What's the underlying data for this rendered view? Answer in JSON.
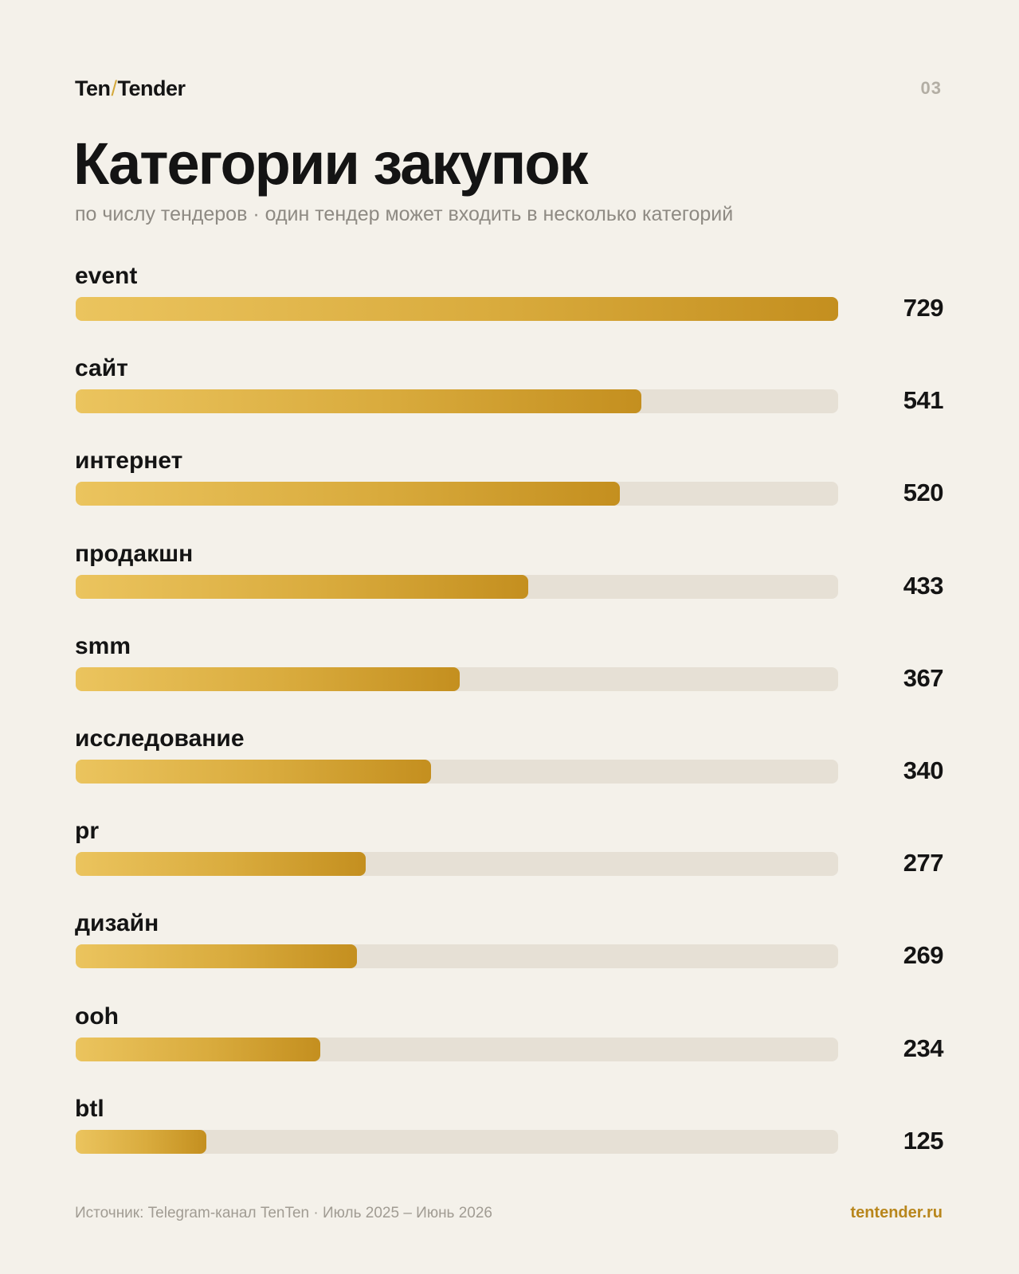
{
  "brand": {
    "left": "Ten",
    "slash": "/",
    "right": "Tender"
  },
  "page_number": "03",
  "footer": {
    "source": "Источник: Telegram-канал TenTen · Июль 2025 – Июнь 2026",
    "url": "tentender.ru"
  },
  "colors": {
    "background": "#f4f1ea",
    "bar_start": "#ebc45e",
    "bar_end": "#c48f1f",
    "track": "#e6e0d5",
    "accent_text": "#b8861c"
  },
  "chart_data": {
    "type": "bar",
    "orientation": "horizontal",
    "title": "Категории закупок",
    "subtitle": "по числу тендеров · один тендер может входить в несколько категорий",
    "categories": [
      "event",
      "сайт",
      "интернет",
      "продакшн",
      "smm",
      "исследование",
      "pr",
      "дизайн",
      "ooh",
      "btl"
    ],
    "values": [
      729,
      541,
      520,
      433,
      367,
      340,
      277,
      269,
      234,
      125
    ],
    "xlim": [
      0,
      729
    ],
    "grid": false,
    "legend": "none"
  }
}
